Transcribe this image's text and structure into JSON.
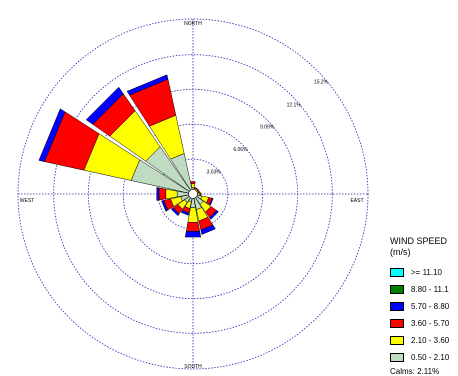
{
  "chart_data": {
    "type": "wind-rose",
    "directions": {
      "north": "NORTH",
      "east": "EAST",
      "south": "SOUTH",
      "west": "WEST"
    },
    "ring_labels": [
      "3.03%",
      "6.06%",
      "9.09%",
      "12.1%",
      "15.2%"
    ],
    "ring_max": 15.2,
    "legend": {
      "title": "WIND SPEED",
      "unit": "(m/s)",
      "bins": [
        {
          "label": ">= 11.10",
          "color": "#00ffff"
        },
        {
          "label": "8.80 - 11.1",
          "color": "#008000"
        },
        {
          "label": "5.70 - 8.80",
          "color": "#0000ff"
        },
        {
          "label": "3.60 - 5.70",
          "color": "#ff0000"
        },
        {
          "label": "2.10 - 3.60",
          "color": "#ffff00"
        },
        {
          "label": "0.50 - 2.10",
          "color": "#c0dcc0"
        }
      ],
      "calms": "Calms: 2.11%"
    },
    "sector_order_bins_inner_to_outer": [
      "0.50 - 2.10",
      "2.10 - 3.60",
      "3.60 - 5.70",
      "5.70 - 8.80"
    ],
    "sectors": [
      {
        "direction_deg": 292.5,
        "values": [
          5.5,
          4.2,
          3.5,
          0.5
        ]
      },
      {
        "direction_deg": 315.0,
        "values": [
          5.0,
          3.8,
          1.8,
          0.7
        ]
      },
      {
        "direction_deg": 337.5,
        "values": [
          3.6,
          3.4,
          3.2,
          0.4
        ]
      },
      {
        "direction_deg": 0.0,
        "values": [
          0.6,
          0.3,
          0.2,
          0.0
        ]
      },
      {
        "direction_deg": 22.5,
        "values": [
          0.3,
          0.2,
          0.1,
          0.0
        ]
      },
      {
        "direction_deg": 45.0,
        "values": [
          0.3,
          0.2,
          0.1,
          0.0
        ]
      },
      {
        "direction_deg": 67.5,
        "values": [
          0.3,
          0.2,
          0.1,
          0.0
        ]
      },
      {
        "direction_deg": 90.0,
        "values": [
          0.4,
          0.2,
          0.1,
          0.0
        ]
      },
      {
        "direction_deg": 112.5,
        "values": [
          0.8,
          0.6,
          0.3,
          0.1
        ]
      },
      {
        "direction_deg": 135.0,
        "values": [
          1.1,
          0.8,
          0.6,
          0.2
        ]
      },
      {
        "direction_deg": 157.5,
        "values": [
          1.4,
          1.0,
          0.8,
          0.4
        ]
      },
      {
        "direction_deg": 180.0,
        "values": [
          1.2,
          1.3,
          0.8,
          0.5
        ]
      },
      {
        "direction_deg": 202.5,
        "values": [
          0.7,
          0.6,
          0.4,
          0.2
        ]
      },
      {
        "direction_deg": 225.0,
        "values": [
          0.9,
          0.7,
          0.5,
          0.2
        ]
      },
      {
        "direction_deg": 247.5,
        "values": [
          1.1,
          0.9,
          0.6,
          0.2
        ]
      },
      {
        "direction_deg": 270.0,
        "values": [
          1.4,
          1.0,
          0.6,
          0.2
        ]
      }
    ]
  }
}
